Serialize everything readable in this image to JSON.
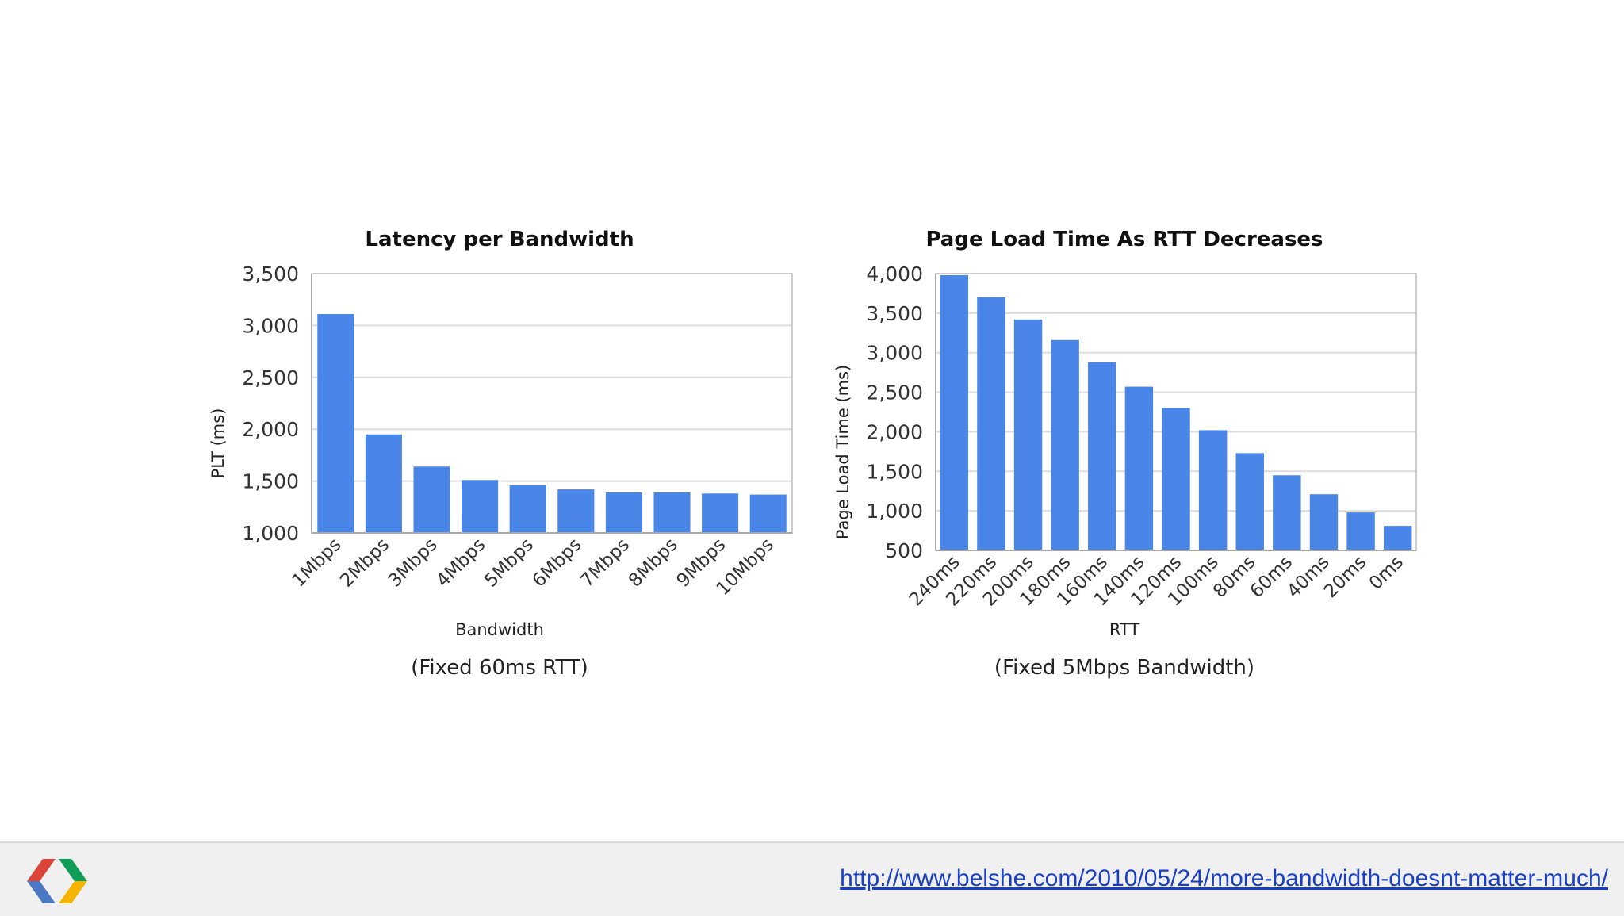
{
  "colors": {
    "bar": "#4a86e8",
    "link": "#1a3fc7",
    "footer_bg": "#f0f0f0"
  },
  "chart_data": [
    {
      "type": "bar",
      "title": "Latency per Bandwidth",
      "xlabel": "Bandwidth",
      "ylabel": "PLT (ms)",
      "caption": "(Fixed 60ms RTT)",
      "categories": [
        "1Mbps",
        "2Mbps",
        "3Mbps",
        "4Mbps",
        "5Mbps",
        "6Mbps",
        "7Mbps",
        "8Mbps",
        "9Mbps",
        "10Mbps"
      ],
      "values": [
        3110,
        1950,
        1640,
        1510,
        1460,
        1420,
        1390,
        1390,
        1380,
        1370
      ],
      "ylim": [
        1000,
        3500
      ],
      "yticks": [
        1000,
        1500,
        2000,
        2500,
        3000,
        3500
      ],
      "ytick_labels": [
        "1,000",
        "1,500",
        "2,000",
        "2,500",
        "3,000",
        "3,500"
      ],
      "grid": true
    },
    {
      "type": "bar",
      "title": "Page Load Time As RTT Decreases",
      "xlabel": "RTT",
      "ylabel": "Page Load Time (ms)",
      "caption": "(Fixed 5Mbps Bandwidth)",
      "categories": [
        "240ms",
        "220ms",
        "200ms",
        "180ms",
        "160ms",
        "140ms",
        "120ms",
        "100ms",
        "80ms",
        "60ms",
        "40ms",
        "20ms",
        "0ms"
      ],
      "values": [
        3980,
        3700,
        3420,
        3160,
        2880,
        2570,
        2300,
        2020,
        1730,
        1450,
        1210,
        980,
        810
      ],
      "ylim": [
        500,
        4000
      ],
      "yticks": [
        500,
        1000,
        1500,
        2000,
        2500,
        3000,
        3500,
        4000
      ],
      "ytick_labels": [
        "500",
        "1,000",
        "1,500",
        "2,000",
        "2,500",
        "3,000",
        "3,500",
        "4,000"
      ],
      "grid": true
    }
  ],
  "footer": {
    "logo": "chrome-chevron-logo-icon",
    "link_text": "http://www.belshe.com/2010/05/24/more-bandwidth-doesnt-matter-much/"
  }
}
